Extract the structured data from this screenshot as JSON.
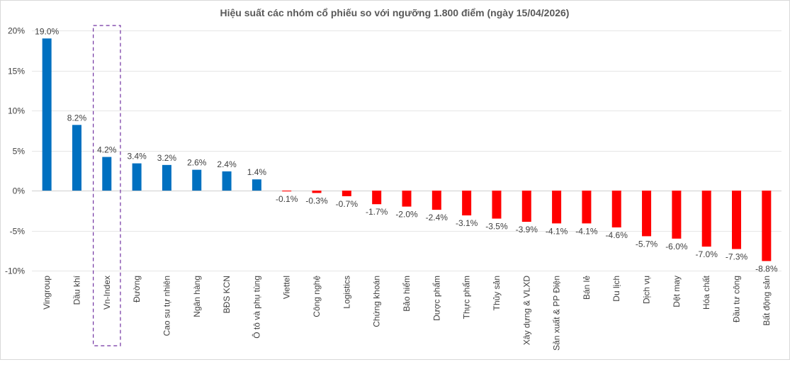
{
  "chart_data": {
    "type": "bar",
    "title": "Hiệu suất các nhóm cổ phiếu so với ngưỡng 1.800 điểm (ngày 15/04/2026)",
    "xlabel": "",
    "ylabel": "",
    "ylim": [
      -10,
      20
    ],
    "yticks": [
      20,
      15,
      10,
      5,
      0,
      -5,
      -10
    ],
    "ytick_labels": [
      "20%",
      "15%",
      "10%",
      "5%",
      "0%",
      "-5%",
      "-10%"
    ],
    "grid": true,
    "legend": "none",
    "categories": [
      "Vingroup",
      "Dầu khí",
      "Vn-Index",
      "Đường",
      "Cao su tự nhiên",
      "Ngân hàng",
      "BĐS KCN",
      "Ô tô và phụ tùng",
      "Viettel",
      "Công nghệ",
      "Logistics",
      "Chứng khoán",
      "Bảo hiểm",
      "Dược phẩm",
      "Thực phẩm",
      "Thủy sản",
      "Xây dựng & VLXD",
      "Sản xuất & PP Điện",
      "Bán lẻ",
      "Du lịch",
      "Dịch vụ",
      "Dệt may",
      "Hóa chất",
      "Đầu tư công",
      "Bất động sản"
    ],
    "values": [
      19.0,
      8.2,
      4.2,
      3.4,
      3.2,
      2.6,
      2.4,
      1.4,
      -0.1,
      -0.3,
      -0.7,
      -1.7,
      -2.0,
      -2.4,
      -3.1,
      -3.5,
      -3.9,
      -4.1,
      -4.1,
      -4.6,
      -5.7,
      -6.0,
      -7.0,
      -7.3,
      -8.8
    ],
    "data_labels": [
      "19.0%",
      "8.2%",
      "4.2%",
      "3.4%",
      "3.2%",
      "2.6%",
      "2.4%",
      "1.4%",
      "-0.1%",
      "-0.3%",
      "-0.7%",
      "-1.7%",
      "-2.0%",
      "-2.4%",
      "-3.1%",
      "-3.5%",
      "-3.9%",
      "-4.1%",
      "-4.1%",
      "-4.6%",
      "-5.7%",
      "-6.0%",
      "-7.0%",
      "-7.3%",
      "-8.8%"
    ],
    "highlighted_category": "Vn-Index",
    "colors": {
      "positive": "#0070c0",
      "negative": "#ff0000",
      "highlight_box": "#7030a0"
    }
  }
}
